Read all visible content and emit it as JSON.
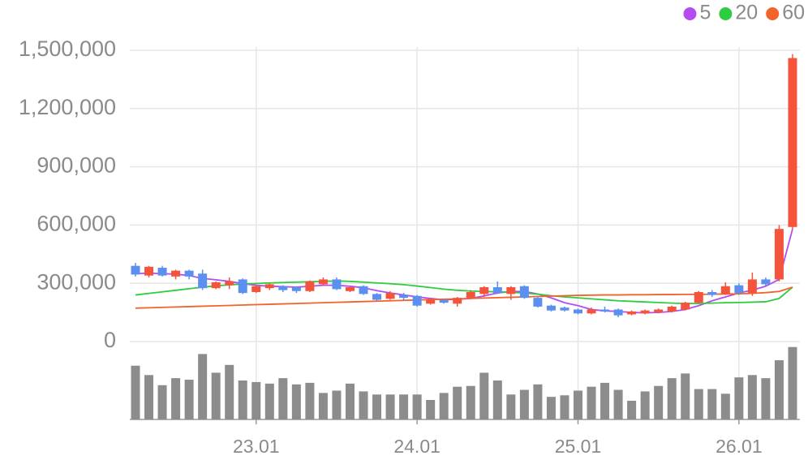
{
  "chart_data": {
    "type": "candlestick",
    "categories": [
      null,
      null,
      null,
      null,
      null,
      null,
      null,
      null,
      null,
      "23.01",
      null,
      null,
      null,
      null,
      null,
      null,
      null,
      null,
      null,
      null,
      null,
      "24.01",
      null,
      null,
      null,
      null,
      null,
      null,
      null,
      null,
      null,
      null,
      null,
      "25.01",
      null,
      null,
      null,
      null,
      null,
      null,
      null,
      null,
      null,
      null,
      null,
      "26.01",
      null,
      null,
      null,
      null
    ],
    "ylim": [
      0,
      1500000
    ],
    "yticks": [
      {
        "value": 0,
        "label": "0"
      },
      {
        "value": 300000,
        "label": "300,000"
      },
      {
        "value": 600000,
        "label": "600,000"
      },
      {
        "value": 900000,
        "label": "900,000"
      },
      {
        "value": 1200000,
        "label": "1,200,000"
      },
      {
        "value": 1500000,
        "label": "1,500,000"
      }
    ],
    "grid": true,
    "up_color": "#f4533c",
    "down_color": "#5b8ff0",
    "open": [
      390000,
      340000,
      380000,
      335000,
      365000,
      350000,
      275000,
      290000,
      320000,
      255000,
      275000,
      285000,
      280000,
      260000,
      295000,
      320000,
      260000,
      285000,
      245000,
      220000,
      240000,
      235000,
      195000,
      215000,
      195000,
      225000,
      245000,
      280000,
      245000,
      285000,
      225000,
      185000,
      175000,
      165000,
      145000,
      165000,
      165000,
      140000,
      145000,
      150000,
      155000,
      165000,
      200000,
      255000,
      245000,
      290000,
      250000,
      320000,
      320000,
      590000
    ],
    "high": [
      405000,
      390000,
      390000,
      370000,
      370000,
      370000,
      310000,
      330000,
      325000,
      290000,
      300000,
      290000,
      285000,
      315000,
      330000,
      330000,
      285000,
      290000,
      250000,
      260000,
      250000,
      240000,
      225000,
      220000,
      230000,
      265000,
      285000,
      310000,
      285000,
      290000,
      230000,
      190000,
      180000,
      170000,
      175000,
      180000,
      170000,
      160000,
      165000,
      170000,
      185000,
      205000,
      260000,
      265000,
      305000,
      300000,
      355000,
      330000,
      600000,
      1480000
    ],
    "low": [
      335000,
      330000,
      335000,
      320000,
      320000,
      265000,
      270000,
      270000,
      245000,
      250000,
      265000,
      255000,
      250000,
      255000,
      290000,
      265000,
      255000,
      240000,
      210000,
      215000,
      215000,
      180000,
      190000,
      195000,
      180000,
      220000,
      230000,
      245000,
      215000,
      220000,
      175000,
      155000,
      155000,
      140000,
      140000,
      150000,
      125000,
      135000,
      140000,
      145000,
      150000,
      160000,
      195000,
      230000,
      240000,
      240000,
      235000,
      285000,
      310000,
      580000
    ],
    "close": [
      345000,
      385000,
      340000,
      365000,
      335000,
      275000,
      305000,
      310000,
      250000,
      285000,
      295000,
      265000,
      260000,
      310000,
      320000,
      270000,
      280000,
      245000,
      215000,
      250000,
      225000,
      185000,
      215000,
      200000,
      225000,
      255000,
      280000,
      250000,
      280000,
      225000,
      180000,
      160000,
      160000,
      145000,
      165000,
      155000,
      135000,
      155000,
      160000,
      165000,
      180000,
      200000,
      255000,
      240000,
      285000,
      250000,
      320000,
      295000,
      580000,
      1460000
    ],
    "ma": [
      {
        "name": "5",
        "color": "#b44cf0",
        "values": [
          350000,
          352000,
          350000,
          347000,
          340000,
          325000,
          318000,
          310000,
          298000,
          290000,
          285000,
          283000,
          280000,
          285000,
          290000,
          290000,
          285000,
          277000,
          262000,
          250000,
          240000,
          230000,
          222000,
          215000,
          218000,
          222000,
          235000,
          250000,
          258000,
          258000,
          245000,
          225000,
          200000,
          185000,
          165000,
          158000,
          155000,
          150000,
          148000,
          150000,
          155000,
          165000,
          185000,
          210000,
          230000,
          250000,
          265000,
          285000,
          320000,
          580000
        ]
      },
      {
        "name": "20",
        "color": "#2ecc40",
        "values": [
          240000,
          248000,
          256000,
          264000,
          272000,
          280000,
          287000,
          292000,
          296000,
          299000,
          302000,
          304000,
          306000,
          308000,
          310000,
          312000,
          310000,
          306000,
          302000,
          298000,
          293000,
          286000,
          278000,
          270000,
          264000,
          260000,
          258000,
          256000,
          254000,
          250000,
          244000,
          236000,
          230000,
          225000,
          220000,
          215000,
          210000,
          207000,
          204000,
          201000,
          198000,
          196000,
          196000,
          198000,
          200000,
          201000,
          203000,
          205000,
          222000,
          280000
        ]
      },
      {
        "name": "60",
        "color": "#f4622c",
        "values": [
          172000,
          174000,
          176000,
          178000,
          180000,
          182000,
          184000,
          186000,
          188000,
          190000,
          192000,
          194000,
          196000,
          198000,
          200000,
          202000,
          204000,
          206000,
          208000,
          210000,
          212000,
          214000,
          216000,
          218000,
          220000,
          222000,
          224000,
          226000,
          228000,
          230000,
          232000,
          234000,
          236000,
          238000,
          239000,
          240000,
          240000,
          241000,
          241000,
          242000,
          242000,
          243000,
          243000,
          244000,
          245000,
          246000,
          248000,
          252000,
          258000,
          280000
        ]
      }
    ],
    "volume": {
      "color": "#8c8c8c",
      "lim": [
        0,
        100
      ],
      "values": [
        69,
        57,
        44,
        53,
        51,
        84,
        60,
        70,
        50,
        48,
        46,
        53,
        45,
        47,
        34,
        37,
        46,
        36,
        32,
        32,
        32,
        32,
        25,
        34,
        42,
        43,
        60,
        50,
        32,
        38,
        45,
        29,
        31,
        37,
        42,
        47,
        38,
        24,
        36,
        43,
        53,
        59,
        39,
        39,
        33,
        54,
        57,
        53,
        76,
        93
      ]
    }
  }
}
